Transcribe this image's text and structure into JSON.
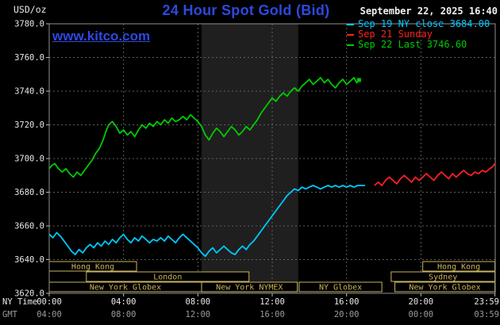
{
  "header": {
    "units_label": "USD/oz",
    "title": "24 Hour Spot Gold (Bid)",
    "datetime": "September 22, 2025 16:40",
    "watermark": "www.kitco.com"
  },
  "axis": {
    "ny_time_label": "NY Time",
    "gmt_label": "GMT"
  },
  "colors": {
    "brand_blue": "#2d49e0",
    "axis_text": "#e8e8e8",
    "gmt_text": "#9a9a9a",
    "plot_border": "#909090"
  },
  "legend": [
    {
      "label": "Sep 19 NY close 3684.00",
      "color": "#00c8ff"
    },
    {
      "label": "Sep 21 Sunday",
      "color": "#ff2020"
    },
    {
      "label": "Sep 22 Last 3746.60",
      "color": "#00cc00"
    }
  ],
  "chart_data": {
    "type": "line",
    "title": "24 Hour Spot Gold (Bid)",
    "xlabel": "NY Time / GMT",
    "ylabel": "USD/oz",
    "x_range": [
      0,
      24
    ],
    "y_range": [
      3620,
      3780
    ],
    "grid_color": "#5f5f5f",
    "session_color": "#c9b45f",
    "y_ticks": [
      {
        "v": 3620,
        "label": "3620.0"
      },
      {
        "v": 3640,
        "label": "3640.0"
      },
      {
        "v": 3660,
        "label": "3660.0"
      },
      {
        "v": 3680,
        "label": "3680.0"
      },
      {
        "v": 3700,
        "label": "3700.0"
      },
      {
        "v": 3720,
        "label": "3720.0"
      },
      {
        "v": 3740,
        "label": "3740.0"
      },
      {
        "v": 3760,
        "label": "3760.0"
      },
      {
        "v": 3780,
        "label": "3780.0"
      }
    ],
    "x_ticks": [
      {
        "h": 0,
        "ny": "00:00",
        "gmt": "04:00"
      },
      {
        "h": 4,
        "ny": "04:00",
        "gmt": "08:00"
      },
      {
        "h": 8,
        "ny": "08:00",
        "gmt": "12:00"
      },
      {
        "h": 12,
        "ny": "12:00",
        "gmt": "16:00"
      },
      {
        "h": 16,
        "ny": "16:00",
        "gmt": "20:00"
      },
      {
        "h": 20,
        "ny": "20:00",
        "gmt": "00:00"
      },
      {
        "h": 23.983,
        "ny": "23:59",
        "gmt": "03:59"
      }
    ],
    "x_gridlines": [
      4,
      8,
      12,
      16,
      20
    ],
    "nymex_band": {
      "start": 8.2,
      "end": 13.4,
      "color": "#1f1f1f"
    },
    "sessions": [
      {
        "row": 0,
        "start": 0,
        "end": 4.7,
        "label": "Hong Kong"
      },
      {
        "row": 0,
        "start": 20.1,
        "end": 23.98,
        "label": "Hong Kong"
      },
      {
        "row": 1,
        "start": 2.0,
        "end": 10.75,
        "label": "London"
      },
      {
        "row": 1,
        "start": 18.4,
        "end": 23.98,
        "label": "Sydney"
      },
      {
        "row": 2,
        "start": 0,
        "end": 8.2,
        "label": "New York Globex"
      },
      {
        "row": 2,
        "start": 8.2,
        "end": 13.35,
        "label": "New York NYMEX"
      },
      {
        "row": 2,
        "start": 13.45,
        "end": 17.9,
        "label": "NY Globex"
      },
      {
        "row": 2,
        "start": 18.6,
        "end": 23.98,
        "label": "New York Globex"
      }
    ],
    "series": [
      {
        "name": "Sep 19 NY close 3684.00",
        "color": "#00c8ff",
        "points": [
          [
            0,
            3655
          ],
          [
            0.2,
            3653
          ],
          [
            0.4,
            3656
          ],
          [
            0.6,
            3654
          ],
          [
            0.8,
            3651
          ],
          [
            1.0,
            3648
          ],
          [
            1.2,
            3645
          ],
          [
            1.4,
            3643
          ],
          [
            1.6,
            3646
          ],
          [
            1.8,
            3644
          ],
          [
            2.0,
            3647
          ],
          [
            2.2,
            3649
          ],
          [
            2.4,
            3647
          ],
          [
            2.6,
            3650
          ],
          [
            2.8,
            3648
          ],
          [
            3.0,
            3651
          ],
          [
            3.2,
            3649
          ],
          [
            3.4,
            3652
          ],
          [
            3.6,
            3650
          ],
          [
            3.8,
            3653
          ],
          [
            4.0,
            3655
          ],
          [
            4.2,
            3652
          ],
          [
            4.4,
            3650
          ],
          [
            4.6,
            3653
          ],
          [
            4.8,
            3651
          ],
          [
            5.0,
            3654
          ],
          [
            5.2,
            3652
          ],
          [
            5.4,
            3650
          ],
          [
            5.6,
            3652
          ],
          [
            5.8,
            3651
          ],
          [
            6.0,
            3653
          ],
          [
            6.2,
            3651
          ],
          [
            6.4,
            3654
          ],
          [
            6.6,
            3652
          ],
          [
            6.8,
            3650
          ],
          [
            7.0,
            3653
          ],
          [
            7.2,
            3655
          ],
          [
            7.4,
            3653
          ],
          [
            7.6,
            3651
          ],
          [
            7.8,
            3649
          ],
          [
            8.0,
            3647
          ],
          [
            8.2,
            3644
          ],
          [
            8.4,
            3642
          ],
          [
            8.6,
            3645
          ],
          [
            8.8,
            3647
          ],
          [
            9.0,
            3644
          ],
          [
            9.2,
            3646
          ],
          [
            9.4,
            3648
          ],
          [
            9.6,
            3646
          ],
          [
            9.8,
            3644
          ],
          [
            10.0,
            3643
          ],
          [
            10.2,
            3646
          ],
          [
            10.4,
            3648
          ],
          [
            10.6,
            3646
          ],
          [
            10.8,
            3649
          ],
          [
            11.0,
            3651
          ],
          [
            11.2,
            3654
          ],
          [
            11.4,
            3657
          ],
          [
            11.6,
            3660
          ],
          [
            11.8,
            3663
          ],
          [
            12.0,
            3666
          ],
          [
            12.2,
            3669
          ],
          [
            12.4,
            3672
          ],
          [
            12.6,
            3675
          ],
          [
            12.8,
            3678
          ],
          [
            13.0,
            3680
          ],
          [
            13.2,
            3682
          ],
          [
            13.4,
            3681
          ],
          [
            13.6,
            3683
          ],
          [
            13.8,
            3682
          ],
          [
            14.0,
            3683
          ],
          [
            14.2,
            3684
          ],
          [
            14.4,
            3683
          ],
          [
            14.6,
            3682
          ],
          [
            14.8,
            3683
          ],
          [
            15.0,
            3684
          ],
          [
            15.2,
            3683
          ],
          [
            15.4,
            3684
          ],
          [
            15.6,
            3683
          ],
          [
            15.8,
            3684
          ],
          [
            16.0,
            3683
          ],
          [
            16.2,
            3684
          ],
          [
            16.4,
            3683
          ],
          [
            16.6,
            3684
          ],
          [
            16.8,
            3684
          ],
          [
            17.0,
            3684
          ]
        ]
      },
      {
        "name": "Sep 21 Sunday",
        "color": "#ff2020",
        "points": [
          [
            17.5,
            3684
          ],
          [
            17.7,
            3686
          ],
          [
            17.9,
            3684
          ],
          [
            18.1,
            3687
          ],
          [
            18.3,
            3689
          ],
          [
            18.5,
            3687
          ],
          [
            18.7,
            3685
          ],
          [
            18.9,
            3688
          ],
          [
            19.1,
            3690
          ],
          [
            19.3,
            3688
          ],
          [
            19.5,
            3686
          ],
          [
            19.7,
            3689
          ],
          [
            19.9,
            3687
          ],
          [
            20.1,
            3689
          ],
          [
            20.3,
            3691
          ],
          [
            20.5,
            3689
          ],
          [
            20.7,
            3687
          ],
          [
            20.9,
            3690
          ],
          [
            21.1,
            3692
          ],
          [
            21.3,
            3690
          ],
          [
            21.5,
            3688
          ],
          [
            21.7,
            3691
          ],
          [
            21.9,
            3689
          ],
          [
            22.1,
            3691
          ],
          [
            22.3,
            3693
          ],
          [
            22.5,
            3691
          ],
          [
            22.7,
            3690
          ],
          [
            22.9,
            3692
          ],
          [
            23.1,
            3691
          ],
          [
            23.3,
            3693
          ],
          [
            23.5,
            3692
          ],
          [
            23.7,
            3694
          ],
          [
            23.85,
            3695
          ],
          [
            23.98,
            3697
          ]
        ]
      },
      {
        "name": "Sep 22 Last 3746.60",
        "color": "#00cc00",
        "end_marker": true,
        "points": [
          [
            0,
            3694
          ],
          [
            0.15,
            3696
          ],
          [
            0.3,
            3697
          ],
          [
            0.5,
            3694
          ],
          [
            0.7,
            3692
          ],
          [
            0.9,
            3694
          ],
          [
            1.1,
            3691
          ],
          [
            1.3,
            3689
          ],
          [
            1.5,
            3692
          ],
          [
            1.7,
            3690
          ],
          [
            1.9,
            3693
          ],
          [
            2.1,
            3696
          ],
          [
            2.3,
            3699
          ],
          [
            2.5,
            3703
          ],
          [
            2.7,
            3706
          ],
          [
            2.9,
            3711
          ],
          [
            3.05,
            3716
          ],
          [
            3.2,
            3720
          ],
          [
            3.4,
            3722
          ],
          [
            3.6,
            3719
          ],
          [
            3.8,
            3715
          ],
          [
            4.0,
            3717
          ],
          [
            4.2,
            3714
          ],
          [
            4.4,
            3716
          ],
          [
            4.6,
            3713
          ],
          [
            4.8,
            3717
          ],
          [
            5.0,
            3720
          ],
          [
            5.2,
            3718
          ],
          [
            5.4,
            3721
          ],
          [
            5.6,
            3719
          ],
          [
            5.8,
            3722
          ],
          [
            6.0,
            3720
          ],
          [
            6.2,
            3723
          ],
          [
            6.4,
            3721
          ],
          [
            6.6,
            3724
          ],
          [
            6.8,
            3722
          ],
          [
            7.0,
            3723
          ],
          [
            7.2,
            3725
          ],
          [
            7.4,
            3723
          ],
          [
            7.6,
            3726
          ],
          [
            7.8,
            3724
          ],
          [
            8.0,
            3722
          ],
          [
            8.2,
            3719
          ],
          [
            8.4,
            3714
          ],
          [
            8.6,
            3711
          ],
          [
            8.8,
            3715
          ],
          [
            9.0,
            3718
          ],
          [
            9.2,
            3716
          ],
          [
            9.4,
            3713
          ],
          [
            9.6,
            3716
          ],
          [
            9.8,
            3719
          ],
          [
            10.0,
            3717
          ],
          [
            10.2,
            3714
          ],
          [
            10.4,
            3716
          ],
          [
            10.6,
            3719
          ],
          [
            10.8,
            3717
          ],
          [
            11.0,
            3720
          ],
          [
            11.2,
            3723
          ],
          [
            11.4,
            3727
          ],
          [
            11.6,
            3730
          ],
          [
            11.8,
            3733
          ],
          [
            12.0,
            3736
          ],
          [
            12.2,
            3734
          ],
          [
            12.4,
            3737
          ],
          [
            12.6,
            3739
          ],
          [
            12.8,
            3737
          ],
          [
            13.0,
            3740
          ],
          [
            13.2,
            3742
          ],
          [
            13.4,
            3740
          ],
          [
            13.6,
            3743
          ],
          [
            13.8,
            3745
          ],
          [
            14.0,
            3747
          ],
          [
            14.2,
            3744
          ],
          [
            14.4,
            3746
          ],
          [
            14.6,
            3748
          ],
          [
            14.8,
            3745
          ],
          [
            15.0,
            3747
          ],
          [
            15.2,
            3744
          ],
          [
            15.4,
            3742
          ],
          [
            15.6,
            3745
          ],
          [
            15.8,
            3747
          ],
          [
            16.0,
            3744
          ],
          [
            16.2,
            3746
          ],
          [
            16.4,
            3748
          ],
          [
            16.55,
            3745
          ],
          [
            16.67,
            3746.6
          ]
        ]
      }
    ]
  }
}
